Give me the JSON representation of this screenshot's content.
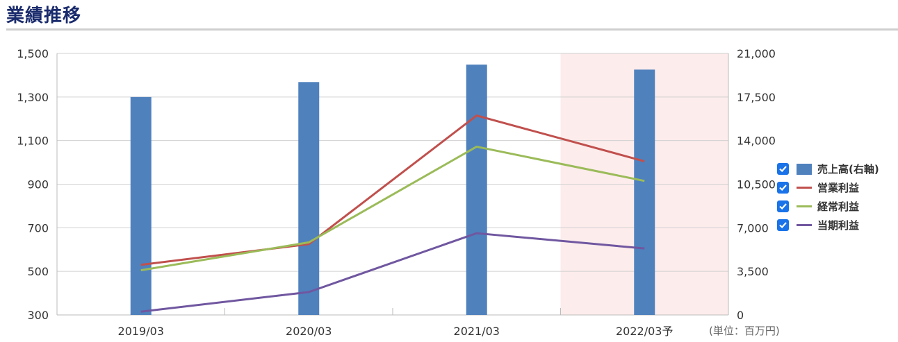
{
  "header": {
    "title": "業績推移"
  },
  "unit_label": "(単位：百万円)",
  "legend": [
    {
      "label": "売上高(右軸)",
      "color": "#4f81bd",
      "checked": true,
      "type": "bar"
    },
    {
      "label": "営業利益",
      "color": "#c0504d",
      "checked": true,
      "type": "line"
    },
    {
      "label": "経常利益",
      "color": "#9bbb59",
      "checked": true,
      "type": "line"
    },
    {
      "label": "当期利益",
      "color": "#7057a0",
      "checked": true,
      "type": "line"
    }
  ],
  "chart_data": {
    "type": "bar+line",
    "categories": [
      "2019/03",
      "2020/03",
      "2021/03",
      "2022/03予"
    ],
    "forecast_index": 3,
    "forecast_band_color": "#fdecec",
    "left_axis": {
      "min": 300,
      "max": 1500,
      "ticks": [
        "1,500",
        "1,300",
        "1,100",
        "900",
        "700",
        "500",
        "300"
      ],
      "tick_values": [
        1500,
        1300,
        1100,
        900,
        700,
        500,
        300
      ]
    },
    "right_axis": {
      "min": 0,
      "max": 21000,
      "ticks": [
        "21,000",
        "17,500",
        "14,000",
        "10,500",
        "7,000",
        "3,500",
        "0"
      ],
      "tick_values": [
        21000,
        17500,
        14000,
        10500,
        7000,
        3500,
        0
      ]
    },
    "grid": true,
    "legend_position": "right",
    "bar_series": {
      "name": "売上高(右軸)",
      "axis": "right",
      "color": "#4f81bd",
      "values": [
        17500,
        18700,
        20100,
        19700
      ]
    },
    "line_series": [
      {
        "name": "営業利益",
        "axis": "left",
        "color": "#c0504d",
        "values": [
          530,
          625,
          1215,
          1005
        ]
      },
      {
        "name": "経常利益",
        "axis": "left",
        "color": "#9bbb59",
        "values": [
          505,
          633,
          1072,
          915
        ]
      },
      {
        "name": "当期利益",
        "axis": "left",
        "color": "#7057a0",
        "values": [
          315,
          405,
          675,
          605
        ]
      }
    ]
  }
}
